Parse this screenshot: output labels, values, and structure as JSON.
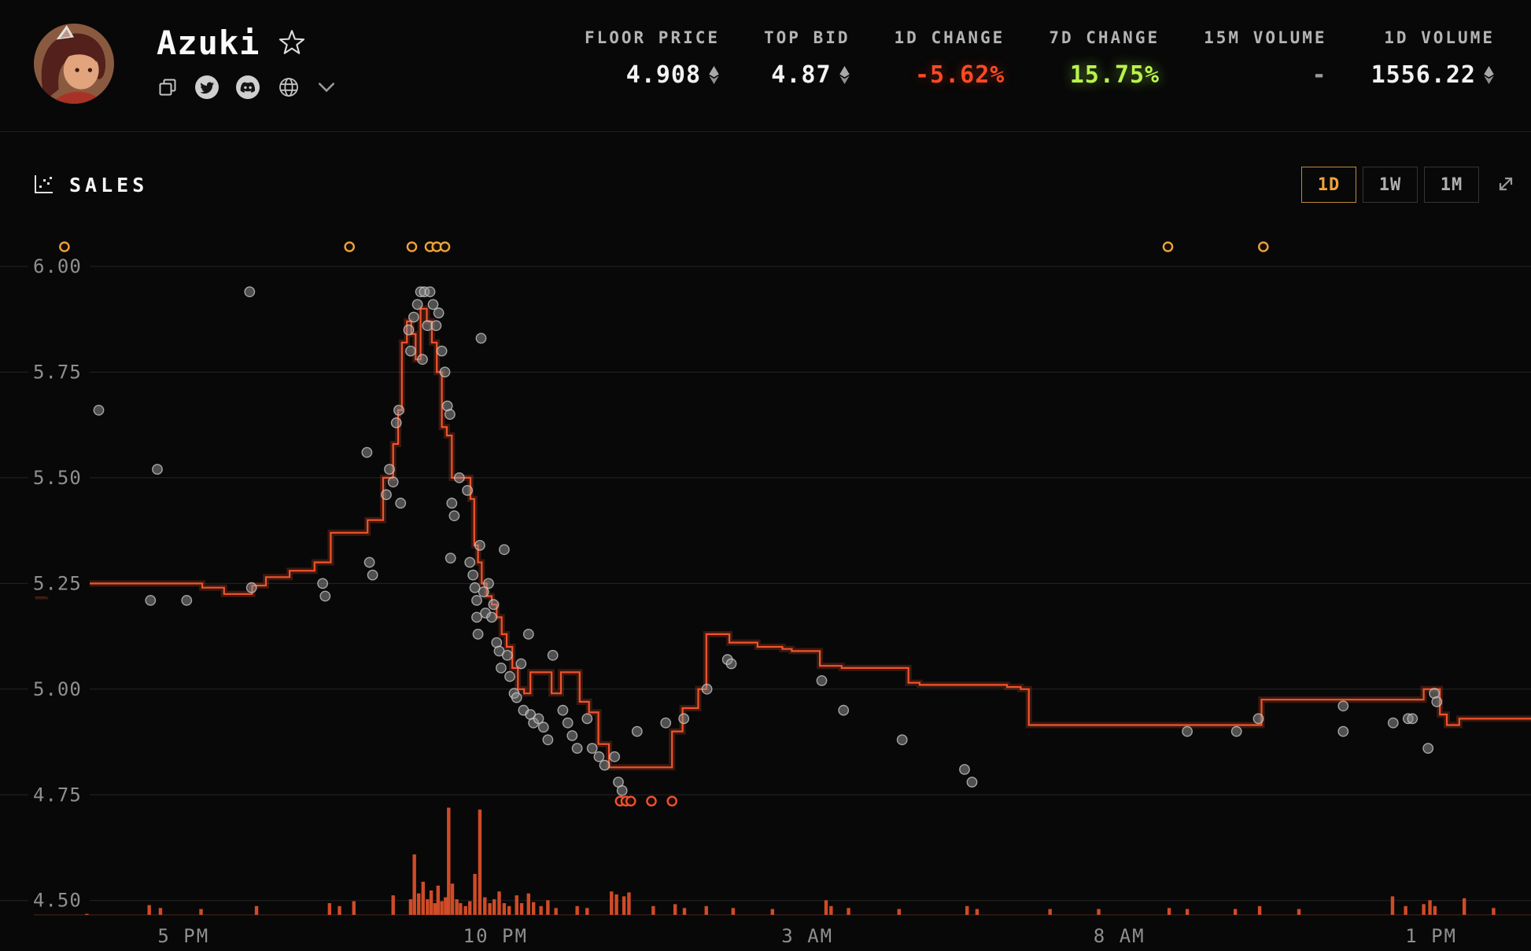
{
  "header": {
    "title": "Azuki",
    "favorite_icon": "star-outline",
    "social_icons": [
      "copy",
      "twitter",
      "discord",
      "website",
      "expand-more"
    ],
    "stats": [
      {
        "label": "FLOOR PRICE",
        "value": "4.908",
        "unit": "ETH"
      },
      {
        "label": "TOP BID",
        "value": "4.87",
        "unit": "ETH"
      },
      {
        "label": "1D CHANGE",
        "value": "-5.62%",
        "trend": "down"
      },
      {
        "label": "7D CHANGE",
        "value": "15.75%",
        "trend": "up"
      },
      {
        "label": "15M VOLUME",
        "value": "-"
      },
      {
        "label": "1D VOLUME",
        "value": "1556.22",
        "unit": "ETH"
      }
    ]
  },
  "chart": {
    "title": "SALES",
    "range_buttons": [
      {
        "label": "1D",
        "active": true
      },
      {
        "label": "1W",
        "active": false
      },
      {
        "label": "1M",
        "active": false
      }
    ]
  },
  "colors": {
    "background": "#080808",
    "floor_line": "#f1542c",
    "volume_bar": "#e2512a",
    "outlier_ring": "#eda33d",
    "low_sale_ring": "#ef512d",
    "sale_dot": "#9a9a9a",
    "positive": "#b9f34e",
    "negative": "#fc4a22",
    "active_button": "#eda33d",
    "gridline": "#242424",
    "axis_text": "#8f8f8f"
  },
  "chart_data": {
    "type": "line",
    "title": "SALES",
    "description": "Floor price step line (ETH) with individual sale scatter points, clipped outlier sales above range, and sale-volume bars along the bottom",
    "legend": "none",
    "grid": true,
    "x_axis": {
      "unit": "time",
      "min_hour": 14.6,
      "max_hour": 38.6,
      "ticks": [
        17,
        22,
        27,
        32,
        37
      ],
      "tick_labels": [
        "5 PM",
        "10 PM",
        "3 AM",
        "8 AM",
        "1 PM"
      ]
    },
    "y_axis": {
      "unit": "ETH",
      "min": 4.5,
      "max": 6.0,
      "ticks": [
        6.0,
        5.75,
        5.5,
        5.25,
        5.0,
        4.75,
        4.5
      ],
      "tick_labels": [
        "6.00",
        "5.75",
        "5.50",
        "5.25",
        "5.00",
        "4.75",
        "4.50"
      ]
    },
    "floor_line": [
      [
        14.62,
        5.22
      ],
      [
        14.78,
        5.25
      ],
      [
        17.05,
        5.25
      ],
      [
        17.3,
        5.24
      ],
      [
        17.65,
        5.225
      ],
      [
        18.1,
        5.245
      ],
      [
        18.32,
        5.265
      ],
      [
        18.7,
        5.28
      ],
      [
        19.1,
        5.3
      ],
      [
        19.36,
        5.37
      ],
      [
        19.95,
        5.4
      ],
      [
        20.2,
        5.5
      ],
      [
        20.36,
        5.58
      ],
      [
        20.44,
        5.66
      ],
      [
        20.5,
        5.82
      ],
      [
        20.58,
        5.87
      ],
      [
        20.65,
        5.84
      ],
      [
        20.72,
        5.78
      ],
      [
        20.8,
        5.9
      ],
      [
        20.9,
        5.87
      ],
      [
        20.98,
        5.82
      ],
      [
        21.06,
        5.75
      ],
      [
        21.14,
        5.62
      ],
      [
        21.22,
        5.6
      ],
      [
        21.3,
        5.5
      ],
      [
        21.55,
        5.5
      ],
      [
        21.6,
        5.45
      ],
      [
        21.66,
        5.34
      ],
      [
        21.72,
        5.3
      ],
      [
        21.78,
        5.25
      ],
      [
        21.86,
        5.22
      ],
      [
        21.94,
        5.2
      ],
      [
        22.02,
        5.17
      ],
      [
        22.1,
        5.13
      ],
      [
        22.18,
        5.1
      ],
      [
        22.27,
        5.05
      ],
      [
        22.36,
        5.0
      ],
      [
        22.46,
        4.99
      ],
      [
        22.56,
        5.04
      ],
      [
        22.8,
        5.04
      ],
      [
        22.9,
        4.99
      ],
      [
        23.05,
        5.04
      ],
      [
        23.25,
        5.04
      ],
      [
        23.35,
        4.97
      ],
      [
        23.5,
        4.945
      ],
      [
        23.65,
        4.87
      ],
      [
        23.82,
        4.815
      ],
      [
        24.72,
        4.815
      ],
      [
        24.83,
        4.9
      ],
      [
        25.0,
        4.955
      ],
      [
        25.25,
        5.0
      ],
      [
        25.38,
        5.13
      ],
      [
        25.68,
        5.13
      ],
      [
        25.75,
        5.11
      ],
      [
        26.1,
        5.11
      ],
      [
        26.2,
        5.1
      ],
      [
        26.6,
        5.095
      ],
      [
        26.75,
        5.09
      ],
      [
        27.2,
        5.055
      ],
      [
        27.55,
        5.05
      ],
      [
        28.55,
        5.05
      ],
      [
        28.62,
        5.015
      ],
      [
        28.8,
        5.01
      ],
      [
        30.2,
        5.005
      ],
      [
        30.42,
        5.0
      ],
      [
        30.55,
        4.915
      ],
      [
        34.2,
        4.915
      ],
      [
        34.28,
        4.975
      ],
      [
        36.8,
        4.975
      ],
      [
        36.88,
        5.0
      ],
      [
        37.08,
        5.0
      ],
      [
        37.14,
        4.94
      ],
      [
        37.25,
        4.915
      ],
      [
        37.45,
        4.93
      ],
      [
        38.6,
        4.93
      ]
    ],
    "sales": [
      [
        15.64,
        5.66
      ],
      [
        16.58,
        5.52
      ],
      [
        16.47,
        5.21
      ],
      [
        17.05,
        5.21
      ],
      [
        18.06,
        5.94
      ],
      [
        18.09,
        5.24
      ],
      [
        19.23,
        5.25
      ],
      [
        19.27,
        5.22
      ],
      [
        19.94,
        5.56
      ],
      [
        19.98,
        5.3
      ],
      [
        20.03,
        5.27
      ],
      [
        20.25,
        5.46
      ],
      [
        20.3,
        5.52
      ],
      [
        20.36,
        5.49
      ],
      [
        20.41,
        5.63
      ],
      [
        20.45,
        5.66
      ],
      [
        20.48,
        5.44
      ],
      [
        20.61,
        5.85
      ],
      [
        20.64,
        5.8
      ],
      [
        20.69,
        5.88
      ],
      [
        20.75,
        5.91
      ],
      [
        20.8,
        5.94
      ],
      [
        20.86,
        5.94
      ],
      [
        20.83,
        5.78
      ],
      [
        20.91,
        5.86
      ],
      [
        20.95,
        5.94
      ],
      [
        21.0,
        5.91
      ],
      [
        21.05,
        5.86
      ],
      [
        21.09,
        5.89
      ],
      [
        21.14,
        5.8
      ],
      [
        21.19,
        5.75
      ],
      [
        21.23,
        5.67
      ],
      [
        21.27,
        5.65
      ],
      [
        21.3,
        5.44
      ],
      [
        21.34,
        5.41
      ],
      [
        21.28,
        5.31
      ],
      [
        21.42,
        5.5
      ],
      [
        21.55,
        5.47
      ],
      [
        21.59,
        5.3
      ],
      [
        21.64,
        5.27
      ],
      [
        21.67,
        5.24
      ],
      [
        21.7,
        5.21
      ],
      [
        21.7,
        5.17
      ],
      [
        21.72,
        5.13
      ],
      [
        21.75,
        5.34
      ],
      [
        21.77,
        5.83
      ],
      [
        21.81,
        5.23
      ],
      [
        21.84,
        5.18
      ],
      [
        21.89,
        5.25
      ],
      [
        21.94,
        5.17
      ],
      [
        21.97,
        5.2
      ],
      [
        22.02,
        5.11
      ],
      [
        22.06,
        5.09
      ],
      [
        22.09,
        5.05
      ],
      [
        22.14,
        5.33
      ],
      [
        22.19,
        5.08
      ],
      [
        22.23,
        5.03
      ],
      [
        22.3,
        4.99
      ],
      [
        22.34,
        4.98
      ],
      [
        22.41,
        5.06
      ],
      [
        22.45,
        4.95
      ],
      [
        22.53,
        5.13
      ],
      [
        22.56,
        4.94
      ],
      [
        22.61,
        4.92
      ],
      [
        22.69,
        4.93
      ],
      [
        22.77,
        4.91
      ],
      [
        22.84,
        4.88
      ],
      [
        22.92,
        5.08
      ],
      [
        23.08,
        4.95
      ],
      [
        23.16,
        4.92
      ],
      [
        23.23,
        4.89
      ],
      [
        23.31,
        4.86
      ],
      [
        23.47,
        4.93
      ],
      [
        23.55,
        4.86
      ],
      [
        23.66,
        4.84
      ],
      [
        23.75,
        4.82
      ],
      [
        23.91,
        4.84
      ],
      [
        23.97,
        4.78
      ],
      [
        24.03,
        4.76
      ],
      [
        24.27,
        4.9
      ],
      [
        24.73,
        4.92
      ],
      [
        25.02,
        4.93
      ],
      [
        25.39,
        5.0
      ],
      [
        25.72,
        5.07
      ],
      [
        25.78,
        5.06
      ],
      [
        27.23,
        5.02
      ],
      [
        27.58,
        4.95
      ],
      [
        28.52,
        4.88
      ],
      [
        29.52,
        4.81
      ],
      [
        29.64,
        4.78
      ],
      [
        33.09,
        4.9
      ],
      [
        33.88,
        4.9
      ],
      [
        34.23,
        4.93
      ],
      [
        35.59,
        4.96
      ],
      [
        35.59,
        4.9
      ],
      [
        36.39,
        4.92
      ],
      [
        36.63,
        4.93
      ],
      [
        36.7,
        4.93
      ],
      [
        36.95,
        4.86
      ],
      [
        37.05,
        4.99
      ],
      [
        37.09,
        4.97
      ]
    ],
    "outlier_sales_above_range": [
      15.09,
      19.66,
      20.66,
      20.95,
      21.06,
      21.19,
      32.78,
      34.31
    ],
    "low_sales": [
      [
        24.0,
        4.735
      ],
      [
        24.09,
        4.735
      ],
      [
        24.17,
        4.735
      ],
      [
        24.5,
        4.735
      ],
      [
        24.83,
        4.735
      ]
    ],
    "volume_bars": [
      [
        15.45,
        8
      ],
      [
        16.45,
        10
      ],
      [
        16.63,
        7
      ],
      [
        17.28,
        6
      ],
      [
        18.17,
        9
      ],
      [
        19.34,
        12
      ],
      [
        19.5,
        9
      ],
      [
        19.73,
        14
      ],
      [
        20.36,
        20
      ],
      [
        20.64,
        16
      ],
      [
        20.7,
        62
      ],
      [
        20.77,
        22
      ],
      [
        20.84,
        34
      ],
      [
        20.91,
        16
      ],
      [
        20.97,
        25
      ],
      [
        21.03,
        12
      ],
      [
        21.08,
        30
      ],
      [
        21.14,
        14
      ],
      [
        21.2,
        18
      ],
      [
        21.25,
        110
      ],
      [
        21.31,
        32
      ],
      [
        21.38,
        16
      ],
      [
        21.44,
        12
      ],
      [
        21.52,
        9
      ],
      [
        21.59,
        14
      ],
      [
        21.67,
        42
      ],
      [
        21.75,
        108
      ],
      [
        21.83,
        18
      ],
      [
        21.91,
        12
      ],
      [
        21.98,
        16
      ],
      [
        22.06,
        24
      ],
      [
        22.14,
        12
      ],
      [
        22.22,
        9
      ],
      [
        22.34,
        20
      ],
      [
        22.42,
        12
      ],
      [
        22.53,
        22
      ],
      [
        22.61,
        13
      ],
      [
        22.73,
        9
      ],
      [
        22.84,
        15
      ],
      [
        22.97,
        7
      ],
      [
        23.31,
        9
      ],
      [
        23.47,
        7
      ],
      [
        23.86,
        24
      ],
      [
        23.94,
        21
      ],
      [
        24.06,
        19
      ],
      [
        24.14,
        23
      ],
      [
        24.53,
        9
      ],
      [
        24.88,
        11
      ],
      [
        25.03,
        7
      ],
      [
        25.38,
        9
      ],
      [
        25.81,
        7
      ],
      [
        26.44,
        6
      ],
      [
        27.3,
        15
      ],
      [
        27.38,
        9
      ],
      [
        27.66,
        7
      ],
      [
        28.47,
        6
      ],
      [
        29.56,
        9
      ],
      [
        29.72,
        6
      ],
      [
        30.89,
        6
      ],
      [
        31.67,
        6
      ],
      [
        32.8,
        7
      ],
      [
        33.09,
        6
      ],
      [
        33.86,
        6
      ],
      [
        34.25,
        9
      ],
      [
        34.88,
        6
      ],
      [
        36.38,
        19
      ],
      [
        36.59,
        9
      ],
      [
        36.88,
        11
      ],
      [
        36.98,
        15
      ],
      [
        37.06,
        9
      ],
      [
        37.53,
        17
      ],
      [
        38.0,
        7
      ]
    ]
  }
}
